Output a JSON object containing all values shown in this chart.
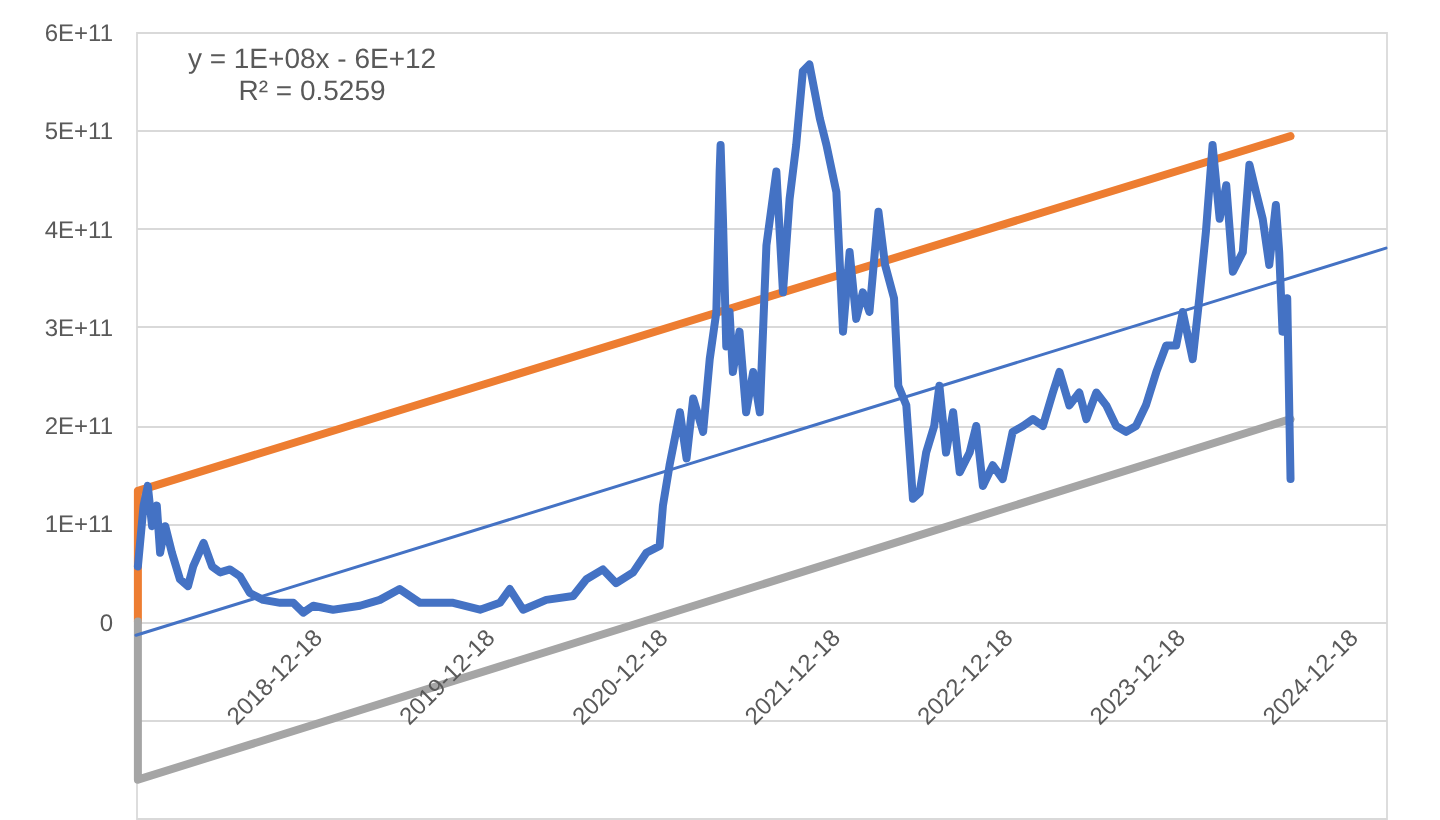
{
  "chart_data": {
    "type": "line",
    "annotations": [
      "y = 1E+08x - 6E+12",
      "R² = 0.5259"
    ],
    "xlim": [
      "2017-12-15",
      "2025-03-13"
    ],
    "xticks": [
      "2018-12-18",
      "2019-12-18",
      "2020-12-18",
      "2021-12-18",
      "2022-12-18",
      "2023-12-18",
      "2024-12-18"
    ],
    "ylim": [
      -200000000000.0,
      600000000000.0
    ],
    "yticks": [
      {
        "value": -200000000000.0,
        "label": null
      },
      {
        "value": -100000000000.0,
        "label": null
      },
      0,
      {
        "value": 100000000000.0,
        "label": "1E+11"
      },
      {
        "value": 200000000000.0,
        "label": "2E+11"
      },
      {
        "value": 300000000000.0,
        "label": "3E+11"
      },
      {
        "value": 400000000000.0,
        "label": "4E+11"
      },
      {
        "value": 500000000000.0,
        "label": "5E+11"
      },
      {
        "value": 600000000000.0,
        "label": "6E+11"
      }
    ],
    "grid": "y",
    "marker": "none",
    "line_style": "solid",
    "series": [
      {
        "color": "#ed7d31",
        "x": [
          "2017-12-19",
          "2017-12-19",
          "2024-08-23"
        ],
        "values": [
          0,
          133000000000.0,
          494000000000.0
        ]
      },
      {
        "color": "#a5a5a5",
        "x": [
          "2017-12-19",
          "2017-12-19",
          "2024-08-23"
        ],
        "values": [
          0,
          -161000000000.0,
          206000000000.0
        ]
      },
      {
        "color": "#4472c4",
        "x": [
          "2017-12-19",
          "2017-12-31",
          "2018-01-09",
          "2018-01-18",
          "2018-01-28",
          "2018-02-04",
          "2018-02-15",
          "2018-03-01",
          "2018-03-18",
          "2018-04-04",
          "2018-04-15",
          "2018-05-07",
          "2018-05-25",
          "2018-06-11",
          "2018-07-02",
          "2018-07-23",
          "2018-08-13",
          "2018-09-10",
          "2018-10-16",
          "2018-11-13",
          "2018-12-04",
          "2018-12-25",
          "2019-02-05",
          "2019-04-03",
          "2019-05-15",
          "2019-06-26",
          "2019-08-08",
          "2019-10-17",
          "2019-12-13",
          "2020-01-24",
          "2020-02-14",
          "2020-03-13",
          "2020-05-01",
          "2020-06-27",
          "2020-07-25",
          "2020-08-29",
          "2020-09-26",
          "2020-11-01",
          "2020-11-29",
          "2020-12-27",
          "2021-01-03",
          "2021-01-17",
          "2021-02-08",
          "2021-02-22",
          "2021-03-08",
          "2021-03-29",
          "2021-04-12",
          "2021-04-26",
          "2021-05-03",
          "2021-05-05",
          "2021-05-10",
          "2021-05-17",
          "2021-05-24",
          "2021-05-31",
          "2021-06-14",
          "2021-06-28",
          "2021-07-13",
          "2021-07-27",
          "2021-08-10",
          "2021-08-31",
          "2021-09-14",
          "2021-09-28",
          "2021-10-12",
          "2021-10-26",
          "2021-11-09",
          "2021-12-01",
          "2021-12-15",
          "2022-01-05",
          "2022-01-19",
          "2022-02-02",
          "2022-02-16",
          "2022-03-02",
          "2022-03-16",
          "2022-04-04",
          "2022-04-18",
          "2022-05-07",
          "2022-05-16",
          "2022-06-02",
          "2022-06-16",
          "2022-06-30",
          "2022-07-14",
          "2022-07-31",
          "2022-08-11",
          "2022-08-25",
          "2022-09-09",
          "2022-09-23",
          "2022-10-14",
          "2022-10-28",
          "2022-11-11",
          "2022-12-02",
          "2022-12-23",
          "2023-01-13",
          "2023-02-04",
          "2023-02-25",
          "2023-03-18",
          "2023-04-08",
          "2023-04-22",
          "2023-05-13",
          "2023-06-03",
          "2023-06-18",
          "2023-07-09",
          "2023-07-30",
          "2023-08-20",
          "2023-09-10",
          "2023-10-01",
          "2023-10-22",
          "2023-11-13",
          "2023-12-04",
          "2023-12-25",
          "2024-01-08",
          "2024-01-29",
          "2024-02-12",
          "2024-02-26",
          "2024-03-11",
          "2024-03-26",
          "2024-04-09",
          "2024-04-23",
          "2024-05-14",
          "2024-05-28",
          "2024-06-11",
          "2024-06-25",
          "2024-07-09",
          "2024-07-23",
          "2024-07-30",
          "2024-08-06",
          "2024-08-16",
          "2024-08-23"
        ],
        "values": [
          56000000000.0,
          118000000000.0,
          138000000000.0,
          97000000000.0,
          118000000000.0,
          70000000000.0,
          97000000000.0,
          70000000000.0,
          43000000000.0,
          36000000000.0,
          56000000000.0,
          80000000000.0,
          56000000000.0,
          50000000000.0,
          53000000000.0,
          46000000000.0,
          29000000000.0,
          22000000000.0,
          19000000000.0,
          19000000000.0,
          9000000000.0,
          16000000000.0,
          12000000000.0,
          16000000000.0,
          22000000000.0,
          33000000000.0,
          19000000000.0,
          19000000000.0,
          12000000000.0,
          19000000000.0,
          33000000000.0,
          12000000000.0,
          22000000000.0,
          26000000000.0,
          43000000000.0,
          53000000000.0,
          39000000000.0,
          50000000000.0,
          70000000000.0,
          77000000000.0,
          118000000000.0,
          159000000000.0,
          213000000000.0,
          166000000000.0,
          227000000000.0,
          193000000000.0,
          267000000000.0,
          315000000000.0,
          458000000000.0,
          485000000000.0,
          410000000000.0,
          280000000000.0,
          315000000000.0,
          254000000000.0,
          295000000000.0,
          213000000000.0,
          254000000000.0,
          213000000000.0,
          383000000000.0,
          458000000000.0,
          335000000000.0,
          430000000000.0,
          485000000000.0,
          560000000000.0,
          567000000000.0,
          512000000000.0,
          485000000000.0,
          437000000000.0,
          295000000000.0,
          376000000000.0,
          308000000000.0,
          335000000000.0,
          315000000000.0,
          417000000000.0,
          363000000000.0,
          329000000000.0,
          240000000000.0,
          220000000000.0,
          125000000000.0,
          131000000000.0,
          172000000000.0,
          199000000000.0,
          240000000000.0,
          172000000000.0,
          213000000000.0,
          152000000000.0,
          172000000000.0,
          199000000000.0,
          138000000000.0,
          159000000000.0,
          145000000000.0,
          193000000000.0,
          199000000000.0,
          206000000000.0,
          199000000000.0,
          233000000000.0,
          254000000000.0,
          220000000000.0,
          233000000000.0,
          206000000000.0,
          233000000000.0,
          220000000000.0,
          199000000000.0,
          193000000000.0,
          199000000000.0,
          220000000000.0,
          254000000000.0,
          281000000000.0,
          281000000000.0,
          315000000000.0,
          267000000000.0,
          329000000000.0,
          397000000000.0,
          485000000000.0,
          410000000000.0,
          444000000000.0,
          356000000000.0,
          376000000000.0,
          465000000000.0,
          437000000000.0,
          410000000000.0,
          363000000000.0,
          424000000000.0,
          376000000000.0,
          295000000000.0,
          329000000000.0,
          145000000000.0
        ]
      },
      {
        "color": "#4472c4",
        "x": [
          "2017-12-15",
          "2025-03-13"
        ],
        "values": [
          -14000000000.0,
          380000000000.0
        ]
      }
    ]
  }
}
